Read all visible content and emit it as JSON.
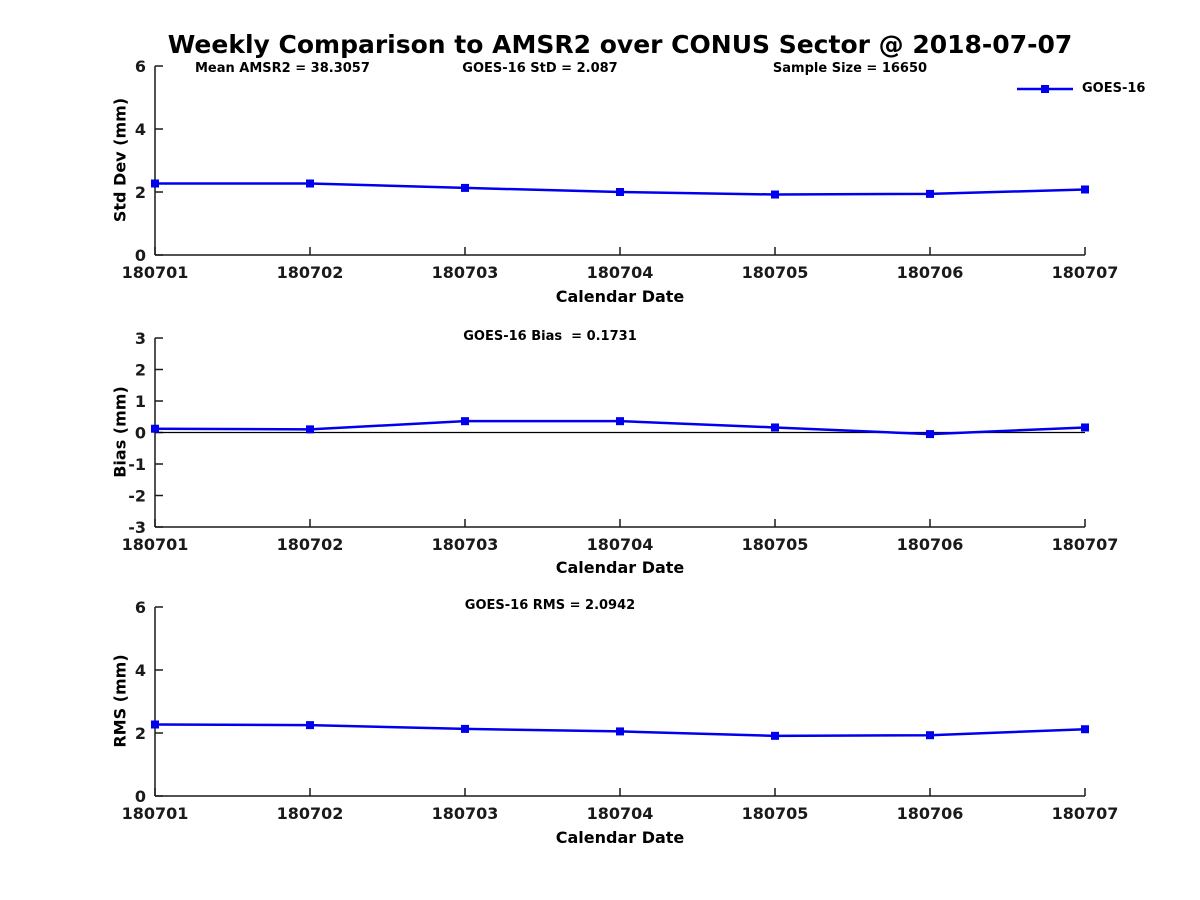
{
  "title": "Weekly Comparison to AMSR2 over CONUS Sector @ 2018-07-07",
  "colors": {
    "series": "#0000ee",
    "axis": "#1a1a1a",
    "zero_line": "#000000",
    "background": "#ffffff"
  },
  "chart_data": [
    {
      "type": "line",
      "name": "std-dev-subplot",
      "annotations": [
        "Mean AMSR2 = 38.3057",
        "GOES-16 StD = 2.087",
        "Sample Size = 16650"
      ],
      "categories": [
        "180701",
        "180702",
        "180703",
        "180704",
        "180705",
        "180706",
        "180707"
      ],
      "series": [
        {
          "name": "GOES-16",
          "values": [
            2.27,
            2.27,
            2.13,
            2.0,
            1.92,
            1.94,
            2.08
          ]
        }
      ],
      "xlabel": "Calendar Date",
      "ylabel": "Std Dev (mm)",
      "ylim": [
        0,
        6
      ],
      "yticks": [
        0,
        2,
        4,
        6
      ],
      "zero_line": false,
      "legend_position": "top-right",
      "grid": false
    },
    {
      "type": "line",
      "name": "bias-subplot",
      "annotations": [
        "GOES-16 Bias  = 0.1731"
      ],
      "categories": [
        "180701",
        "180702",
        "180703",
        "180704",
        "180705",
        "180706",
        "180707"
      ],
      "series": [
        {
          "name": "GOES-16",
          "values": [
            0.12,
            0.1,
            0.36,
            0.36,
            0.16,
            -0.05,
            0.16
          ]
        }
      ],
      "xlabel": "Calendar Date",
      "ylabel": "Bias (mm)",
      "ylim": [
        -3,
        3
      ],
      "yticks": [
        -3,
        -2,
        -1,
        0,
        1,
        2,
        3
      ],
      "zero_line": true,
      "legend_position": "none",
      "grid": false
    },
    {
      "type": "line",
      "name": "rms-subplot",
      "annotations": [
        "GOES-16 RMS = 2.0942"
      ],
      "categories": [
        "180701",
        "180702",
        "180703",
        "180704",
        "180705",
        "180706",
        "180707"
      ],
      "series": [
        {
          "name": "GOES-16",
          "values": [
            2.27,
            2.25,
            2.13,
            2.05,
            1.91,
            1.93,
            2.12
          ]
        }
      ],
      "xlabel": "Calendar Date",
      "ylabel": "RMS (mm)",
      "ylim": [
        0,
        6
      ],
      "yticks": [
        0,
        2,
        4,
        6
      ],
      "zero_line": false,
      "legend_position": "none",
      "grid": false
    }
  ]
}
